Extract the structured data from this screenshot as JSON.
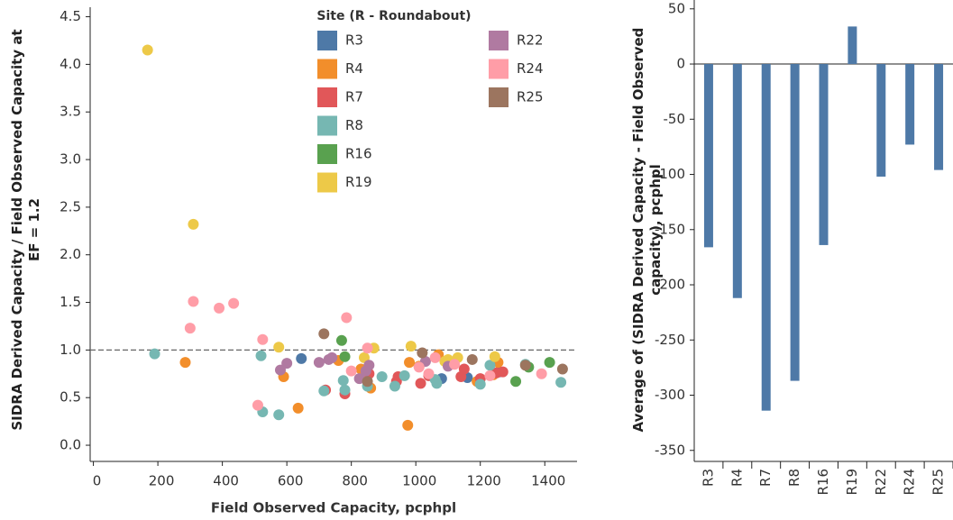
{
  "chart_data": [
    {
      "type": "scatter",
      "xlabel": "Field Observed Capacity, pcphpl",
      "ylabel": "SIDRA Derived Capacity / Field Observed Capacity at EF = 1.2",
      "legend_title": "Site (R - Roundabout)",
      "xlim": [
        -10,
        1500
      ],
      "ylim": [
        -0.17,
        4.6
      ],
      "xticks": [
        0,
        200,
        400,
        600,
        800,
        1000,
        1200,
        1400
      ],
      "yticks": [
        {
          "value": 0,
          "label": "0.0"
        },
        0.5,
        {
          "value": 1,
          "label": "1.0"
        },
        1.5,
        {
          "value": 2,
          "label": "2.0"
        },
        2.5,
        {
          "value": 3,
          "label": "3.0"
        },
        3.5,
        {
          "value": 4,
          "label": "4.0"
        },
        4.5
      ],
      "reference_line": 1,
      "series": [
        {
          "name": "R3",
          "color": "#4e79a7",
          "x": [
            645,
            1080,
            1160,
            1260
          ],
          "values": [
            0.91,
            0.7,
            0.71,
            0.77
          ]
        },
        {
          "name": "R4",
          "color": "#f28e2b",
          "x": [
            285,
            590,
            635,
            760,
            830,
            860,
            980,
            975,
            1010,
            1070,
            1105,
            1190,
            1240,
            1255
          ],
          "values": [
            0.87,
            0.72,
            0.39,
            0.89,
            0.8,
            0.6,
            0.87,
            0.21,
            0.83,
            0.95,
            0.88,
            0.67,
            0.74,
            0.87
          ]
        },
        {
          "name": "R7",
          "color": "#e15759",
          "x": [
            720,
            780,
            855,
            940,
            945,
            1015,
            1040,
            1140,
            1200,
            1250,
            1270,
            1150
          ],
          "values": [
            0.58,
            0.54,
            0.75,
            0.67,
            0.72,
            0.65,
            0.73,
            0.72,
            0.7,
            0.76,
            0.77,
            0.8
          ]
        },
        {
          "name": "R8",
          "color": "#76b7b2",
          "x": [
            190,
            520,
            525,
            575,
            715,
            775,
            780,
            850,
            895,
            935,
            965,
            1065,
            1060,
            1200,
            1230,
            1450,
            1340
          ],
          "values": [
            0.96,
            0.94,
            0.35,
            0.32,
            0.57,
            0.68,
            0.58,
            0.62,
            0.72,
            0.62,
            0.73,
            0.65,
            0.69,
            0.64,
            0.84,
            0.66,
            0.85
          ]
        },
        {
          "name": "R16",
          "color": "#59a14f",
          "x": [
            770,
            780,
            1310,
            1415,
            1350
          ],
          "values": [
            1.1,
            0.93,
            0.67,
            0.87,
            0.82
          ]
        },
        {
          "name": "R19",
          "color": "#edc948",
          "x": [
            168,
            310,
            575,
            840,
            870,
            985,
            1090,
            1130,
            1245,
            1100
          ],
          "values": [
            4.15,
            2.32,
            1.03,
            0.92,
            1.02,
            1.04,
            0.88,
            0.92,
            0.93,
            0.9
          ]
        },
        {
          "name": "R22",
          "color": "#b07aa1",
          "x": [
            580,
            600,
            700,
            730,
            740,
            825,
            845,
            855,
            1030,
            1100
          ],
          "values": [
            0.79,
            0.86,
            0.87,
            0.9,
            0.92,
            0.7,
            0.78,
            0.84,
            0.88,
            0.83
          ]
        },
        {
          "name": "R24",
          "color": "#ff9da7",
          "x": [
            300,
            310,
            390,
            435,
            525,
            510,
            785,
            800,
            850,
            1040,
            1060,
            1120,
            1230,
            1390,
            1010
          ],
          "values": [
            1.23,
            1.51,
            1.44,
            1.49,
            1.11,
            0.42,
            1.34,
            0.78,
            1.02,
            0.75,
            0.92,
            0.85,
            0.73,
            0.75,
            0.82
          ]
        },
        {
          "name": "R25",
          "color": "#9c755f",
          "x": [
            715,
            1020,
            1175,
            1340,
            1455,
            850
          ],
          "values": [
            1.17,
            0.97,
            0.9,
            0.84,
            0.8,
            0.67
          ]
        }
      ]
    },
    {
      "type": "bar",
      "ylabel": "Average of (SIDRA Derived Capacity - Field Observed capacity), pcphpl",
      "color": "#4e79a7",
      "categories": [
        "R3",
        "R4",
        "R7",
        "R8",
        "R16",
        "R19",
        "R22",
        "R24",
        "R25"
      ],
      "values": [
        -166,
        -212,
        -314,
        -287,
        -164,
        34,
        -102,
        -73,
        -96
      ],
      "ylim": [
        -360,
        58
      ],
      "yticks": [
        -350,
        -300,
        -250,
        -200,
        -150,
        -100,
        -50,
        0,
        50
      ]
    }
  ]
}
